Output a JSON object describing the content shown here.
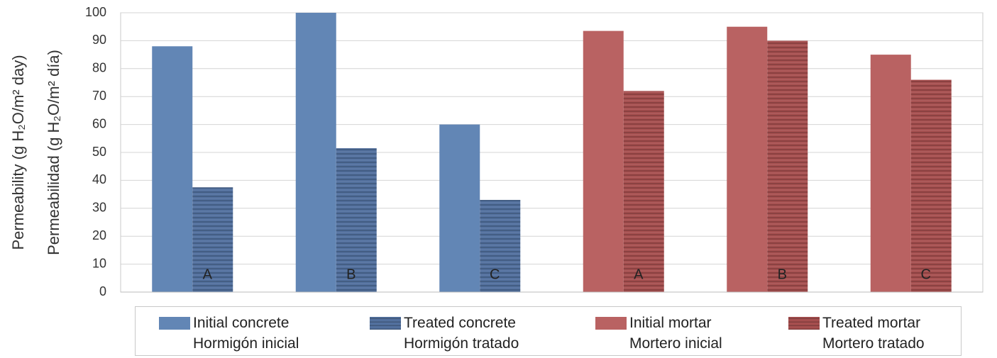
{
  "chart_data": {
    "type": "bar",
    "y_labels": [
      "Permeability (g H₂O/m² day)",
      "Permeabilidad (g H₂O/m² día)"
    ],
    "categories": [
      "A",
      "B",
      "C",
      "A",
      "B",
      "C"
    ],
    "series": [
      {
        "name": "Initial concrete\nHormigón inicial",
        "color": "#6286b5",
        "hatched": false,
        "values": [
          88,
          100,
          60,
          null,
          null,
          null
        ]
      },
      {
        "name": "Treated concrete\nHormigón tratado",
        "color": "#52709e",
        "hatched": true,
        "values": [
          37.5,
          51.5,
          33,
          null,
          null,
          null
        ]
      },
      {
        "name": "Initial mortar\nMortero inicial",
        "color": "#b96262",
        "hatched": false,
        "values": [
          null,
          null,
          null,
          93.5,
          95,
          85
        ]
      },
      {
        "name": "Treated mortar\nMortero tratado",
        "color": "#a64f4f",
        "hatched": true,
        "values": [
          null,
          null,
          null,
          72,
          90,
          76
        ]
      }
    ],
    "ylim": [
      0,
      100
    ],
    "yticks": [
      0,
      10,
      20,
      30,
      40,
      50,
      60,
      70,
      80,
      90,
      100
    ],
    "grid": true
  }
}
